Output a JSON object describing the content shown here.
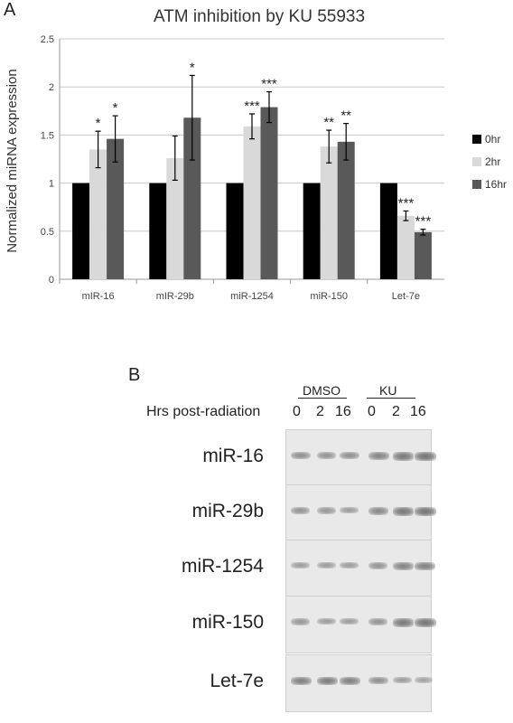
{
  "panel_a_label": "A",
  "panel_b_label": "B",
  "chart_data": {
    "type": "bar",
    "title": "ATM inhibition by KU 55933",
    "ylabel": "Normalized miRNA expression",
    "xlabel": "",
    "ylim": [
      0,
      2.5
    ],
    "yticks": [
      "0",
      "0.5",
      "1",
      "1.5",
      "2",
      "2.5"
    ],
    "grid": true,
    "legend_position": "right",
    "categories": [
      "mIR-16",
      "mIR-29b",
      "miR-1254",
      "miR-150",
      "Let-7e"
    ],
    "series": [
      {
        "name": "0hr",
        "color": "#000000",
        "values": [
          1,
          1,
          1,
          1,
          1
        ],
        "errors": [
          0,
          0,
          0,
          0,
          0
        ],
        "stars": [
          "",
          "",
          "",
          "",
          ""
        ]
      },
      {
        "name": "2hr",
        "color": "#d9d9d9",
        "values": [
          1.35,
          1.26,
          1.59,
          1.38,
          0.66
        ],
        "errors": [
          0.19,
          0.23,
          0.13,
          0.17,
          0.05
        ],
        "stars": [
          "*",
          "",
          "***",
          "**",
          "***"
        ]
      },
      {
        "name": "16hr",
        "color": "#595959",
        "values": [
          1.46,
          1.68,
          1.79,
          1.43,
          0.49
        ],
        "errors": [
          0.24,
          0.44,
          0.16,
          0.19,
          0.03
        ],
        "stars": [
          "*",
          "*",
          "***",
          "**",
          "***"
        ]
      }
    ]
  },
  "blot": {
    "group_labels": [
      "DMSO",
      "KU"
    ],
    "hrs_label": "Hrs post-radiation",
    "lanes": [
      "0",
      "2",
      "16",
      "0",
      "2",
      "16"
    ],
    "rows": [
      {
        "label": "miR-16",
        "intensity": [
          0.6,
          0.55,
          0.6,
          0.75,
          0.9,
          0.95
        ]
      },
      {
        "label": "miR-29b",
        "intensity": [
          0.55,
          0.5,
          0.45,
          0.7,
          0.9,
          0.95
        ]
      },
      {
        "label": "miR-1254",
        "intensity": [
          0.45,
          0.45,
          0.45,
          0.55,
          0.75,
          0.8
        ]
      },
      {
        "label": "miR-150",
        "intensity": [
          0.5,
          0.45,
          0.45,
          0.55,
          0.9,
          0.95
        ]
      },
      {
        "label": "Let-7e",
        "intensity": [
          0.8,
          0.85,
          0.8,
          0.6,
          0.45,
          0.35
        ]
      }
    ]
  }
}
